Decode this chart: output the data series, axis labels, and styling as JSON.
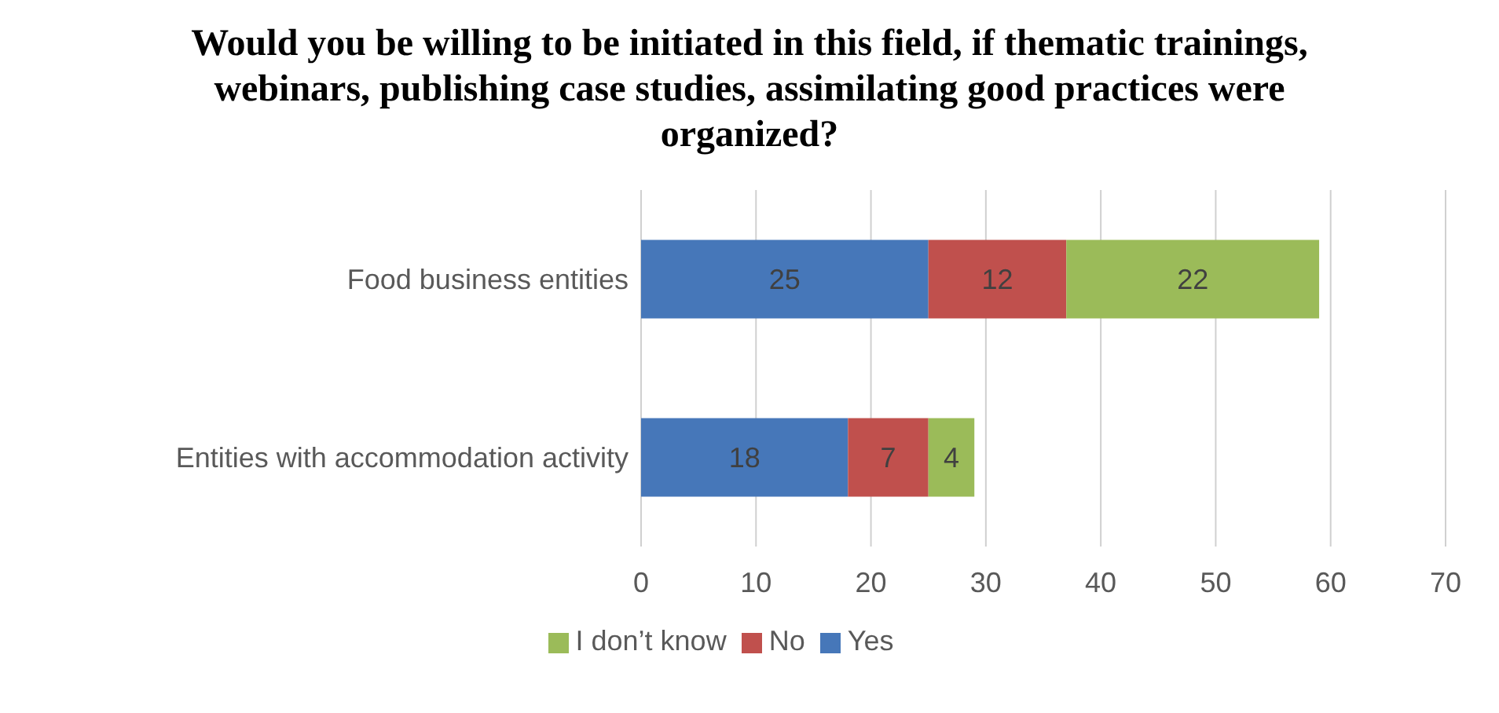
{
  "chart_data": {
    "type": "bar",
    "orientation": "horizontal",
    "stacked": true,
    "title": "Would you be willing to be initiated in this field, if thematic trainings, webinars, publishing case studies, assimilating good practices were organized?",
    "categories": [
      "Food business entities",
      "Entities with accommodation activity"
    ],
    "series": [
      {
        "name": "Yes",
        "color": "#4677b9",
        "values": [
          25,
          18
        ]
      },
      {
        "name": "No",
        "color": "#c0504d",
        "values": [
          12,
          7
        ]
      },
      {
        "name": "I don’t know",
        "color": "#9bbb59",
        "values": [
          22,
          4
        ]
      }
    ],
    "xlim": [
      0,
      70
    ],
    "xticks": [
      0,
      10,
      20,
      30,
      40,
      50,
      60,
      70
    ],
    "grid": "x",
    "legend": "bottom",
    "data_labels": true
  }
}
